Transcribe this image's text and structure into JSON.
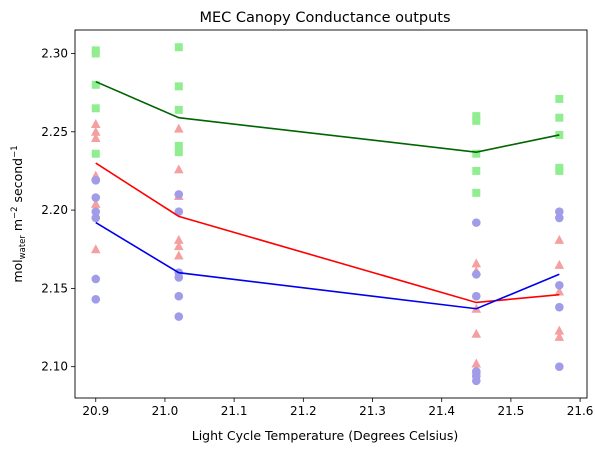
{
  "chart_data": {
    "type": "scatter",
    "title": "MEC Canopy Conductance outputs",
    "xlabel": "Light Cycle Temperature (Degrees Celsius)",
    "ylabel": {
      "prefix": "mol",
      "subscript": "water",
      "middle": " m",
      "sup1": "−2",
      "unit2": " second",
      "sup2": "−1"
    },
    "xlim": [
      20.87,
      21.61
    ],
    "ylim": [
      2.08,
      2.315
    ],
    "xticks": [
      20.9,
      21.0,
      21.1,
      21.2,
      21.3,
      21.4,
      21.5,
      21.6
    ],
    "xtick_labels": [
      "20.9",
      "21.0",
      "21.1",
      "21.2",
      "21.3",
      "21.4",
      "21.5",
      "21.6"
    ],
    "yticks": [
      2.1,
      2.15,
      2.2,
      2.25,
      2.3
    ],
    "ytick_labels": [
      "2.10",
      "2.15",
      "2.20",
      "2.25",
      "2.30"
    ],
    "grid": false,
    "series": [
      {
        "marker": "square",
        "point_color": "#90ee90",
        "line_color": "#006400",
        "points": [
          {
            "x": 20.9,
            "y": 2.302
          },
          {
            "x": 20.9,
            "y": 2.3
          },
          {
            "x": 20.9,
            "y": 2.28
          },
          {
            "x": 20.9,
            "y": 2.265
          },
          {
            "x": 20.9,
            "y": 2.236
          },
          {
            "x": 21.02,
            "y": 2.304
          },
          {
            "x": 21.02,
            "y": 2.279
          },
          {
            "x": 21.02,
            "y": 2.264
          },
          {
            "x": 21.02,
            "y": 2.241
          },
          {
            "x": 21.02,
            "y": 2.237
          },
          {
            "x": 21.45,
            "y": 2.26
          },
          {
            "x": 21.45,
            "y": 2.257
          },
          {
            "x": 21.45,
            "y": 2.236
          },
          {
            "x": 21.45,
            "y": 2.225
          },
          {
            "x": 21.45,
            "y": 2.211
          },
          {
            "x": 21.57,
            "y": 2.271
          },
          {
            "x": 21.57,
            "y": 2.259
          },
          {
            "x": 21.57,
            "y": 2.248
          },
          {
            "x": 21.57,
            "y": 2.227
          },
          {
            "x": 21.57,
            "y": 2.225
          }
        ],
        "line": [
          {
            "x": 20.9,
            "y": 2.282
          },
          {
            "x": 21.02,
            "y": 2.259
          },
          {
            "x": 21.45,
            "y": 2.237
          },
          {
            "x": 21.57,
            "y": 2.248
          }
        ]
      },
      {
        "marker": "triangle",
        "point_color": "#f4a0a0",
        "line_color": "#ff0000",
        "points": [
          {
            "x": 20.9,
            "y": 2.255
          },
          {
            "x": 20.9,
            "y": 2.25
          },
          {
            "x": 20.9,
            "y": 2.246
          },
          {
            "x": 20.9,
            "y": 2.222
          },
          {
            "x": 20.9,
            "y": 2.204
          },
          {
            "x": 20.9,
            "y": 2.175
          },
          {
            "x": 21.02,
            "y": 2.252
          },
          {
            "x": 21.02,
            "y": 2.226
          },
          {
            "x": 21.02,
            "y": 2.209
          },
          {
            "x": 21.02,
            "y": 2.181
          },
          {
            "x": 21.02,
            "y": 2.177
          },
          {
            "x": 21.02,
            "y": 2.171
          },
          {
            "x": 21.45,
            "y": 2.166
          },
          {
            "x": 21.45,
            "y": 2.161
          },
          {
            "x": 21.45,
            "y": 2.137
          },
          {
            "x": 21.45,
            "y": 2.121
          },
          {
            "x": 21.45,
            "y": 2.102
          },
          {
            "x": 21.45,
            "y": 2.098
          },
          {
            "x": 21.57,
            "y": 2.181
          },
          {
            "x": 21.57,
            "y": 2.165
          },
          {
            "x": 21.57,
            "y": 2.148
          },
          {
            "x": 21.57,
            "y": 2.123
          },
          {
            "x": 21.57,
            "y": 2.119
          }
        ],
        "line": [
          {
            "x": 20.9,
            "y": 2.23
          },
          {
            "x": 21.02,
            "y": 2.196
          },
          {
            "x": 21.45,
            "y": 2.141
          },
          {
            "x": 21.57,
            "y": 2.146
          }
        ]
      },
      {
        "marker": "circle",
        "point_color": "#a09ce8",
        "line_color": "#0000ee",
        "points": [
          {
            "x": 20.9,
            "y": 2.219
          },
          {
            "x": 20.9,
            "y": 2.208
          },
          {
            "x": 20.9,
            "y": 2.199
          },
          {
            "x": 20.9,
            "y": 2.195
          },
          {
            "x": 20.9,
            "y": 2.156
          },
          {
            "x": 20.9,
            "y": 2.143
          },
          {
            "x": 21.02,
            "y": 2.21
          },
          {
            "x": 21.02,
            "y": 2.199
          },
          {
            "x": 21.02,
            "y": 2.16
          },
          {
            "x": 21.02,
            "y": 2.157
          },
          {
            "x": 21.02,
            "y": 2.145
          },
          {
            "x": 21.02,
            "y": 2.132
          },
          {
            "x": 21.45,
            "y": 2.192
          },
          {
            "x": 21.45,
            "y": 2.159
          },
          {
            "x": 21.45,
            "y": 2.145
          },
          {
            "x": 21.45,
            "y": 2.097
          },
          {
            "x": 21.45,
            "y": 2.094
          },
          {
            "x": 21.45,
            "y": 2.091
          },
          {
            "x": 21.57,
            "y": 2.199
          },
          {
            "x": 21.57,
            "y": 2.195
          },
          {
            "x": 21.57,
            "y": 2.152
          },
          {
            "x": 21.57,
            "y": 2.138
          },
          {
            "x": 21.57,
            "y": 2.1
          }
        ],
        "line": [
          {
            "x": 20.9,
            "y": 2.192
          },
          {
            "x": 21.02,
            "y": 2.16
          },
          {
            "x": 21.45,
            "y": 2.137
          },
          {
            "x": 21.57,
            "y": 2.159
          }
        ]
      }
    ]
  }
}
